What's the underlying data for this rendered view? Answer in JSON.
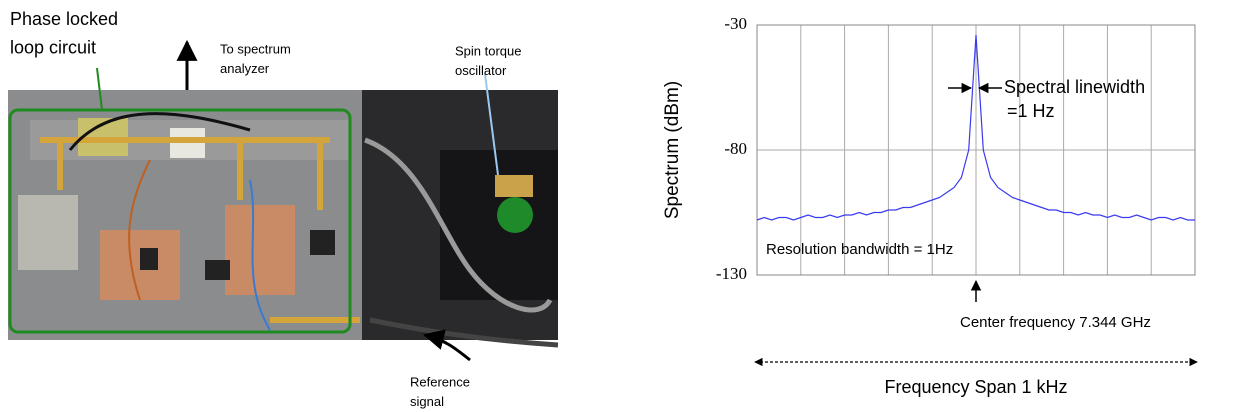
{
  "photo": {
    "labels": [
      [
        "Phase locked",
        "loop circuit"
      ],
      [
        "To spectrum",
        "analyzer"
      ],
      [
        "Spin torque",
        "oscillator"
      ],
      [
        "Reference",
        "signal"
      ]
    ]
  },
  "chart_data": {
    "type": "line",
    "y_label": "Spectrum (dBm)",
    "ylim": [
      -130,
      -30
    ],
    "yticks": [
      -130,
      -80,
      -30
    ],
    "grid": true,
    "color": "#3a3af0",
    "values": [
      -108,
      -107,
      -108,
      -107,
      -107,
      -108,
      -107,
      -106,
      -107,
      -107,
      -106,
      -107,
      -106,
      -106,
      -105,
      -106,
      -105,
      -105,
      -104,
      -104,
      -103,
      -103,
      -102,
      -101,
      -100,
      -99,
      -97,
      -95,
      -91,
      -80,
      -34,
      -80,
      -91,
      -95,
      -97,
      -99,
      -100,
      -101,
      -102,
      -103,
      -104,
      -104,
      -105,
      -105,
      -106,
      -105,
      -106,
      -106,
      -107,
      -106,
      -107,
      -107,
      -106,
      -107,
      -108,
      -107,
      -107,
      -108,
      -107,
      -108,
      -108
    ],
    "annotations": [
      [
        "Spectral linewidth",
        "=1 Hz"
      ],
      [
        "Resolution bandwidth = 1Hz"
      ],
      [
        "Center frequency 7.344 GHz"
      ],
      [
        "Frequency Span 1 kHz"
      ]
    ]
  }
}
